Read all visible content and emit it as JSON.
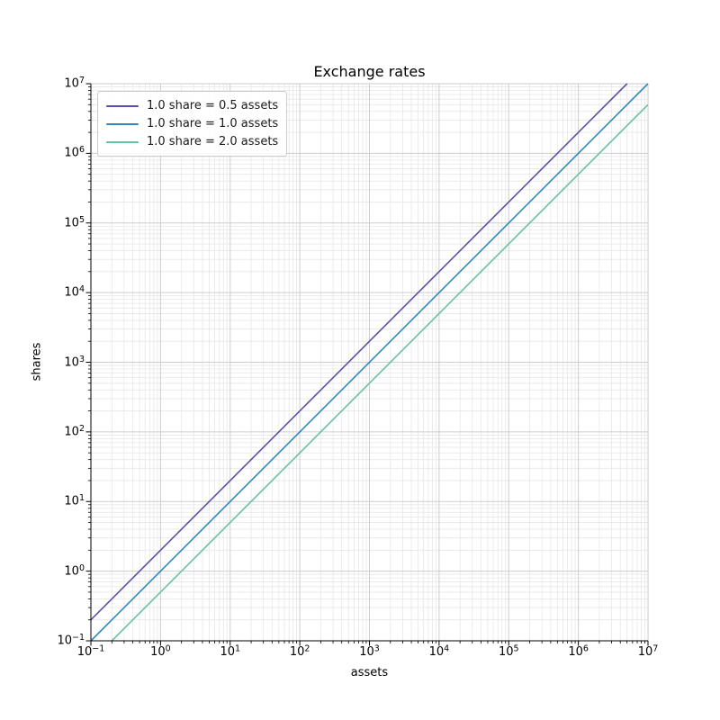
{
  "chart_data": {
    "type": "line",
    "title": "Exchange rates",
    "xlabel": "assets",
    "ylabel": "shares",
    "xscale": "log",
    "yscale": "log",
    "xlim": [
      0.1,
      10000000
    ],
    "ylim": [
      0.1,
      10000000
    ],
    "grid": "both",
    "legend_position": "upper-left",
    "x_tick_exponents": [
      -1,
      0,
      1,
      2,
      3,
      4,
      5,
      6,
      7
    ],
    "y_tick_exponents": [
      -1,
      0,
      1,
      2,
      3,
      4,
      5,
      6,
      7
    ],
    "tick_label_base": "10",
    "series": [
      {
        "label": "1.0 share = 0.5 assets",
        "color": "#5e4fa2",
        "shares_per_asset": 2.0,
        "points": [
          [
            0.1,
            0.2
          ],
          [
            5000000,
            10000000
          ]
        ]
      },
      {
        "label": "1.0 share = 1.0 assets",
        "color": "#3288bd",
        "shares_per_asset": 1.0,
        "points": [
          [
            0.1,
            0.1
          ],
          [
            10000000,
            10000000
          ]
        ]
      },
      {
        "label": "1.0 share = 2.0 assets",
        "color": "#66c2a5",
        "shares_per_asset": 0.5,
        "points": [
          [
            0.2,
            0.1
          ],
          [
            10000000,
            5000000
          ]
        ]
      }
    ],
    "style": {
      "background": "#ffffff",
      "spine_color": "#000000",
      "major_grid_color": "#cdcdcd",
      "minor_grid_color": "#e7e7e7",
      "tick_color": "#000000",
      "text_color": "#000000"
    }
  }
}
